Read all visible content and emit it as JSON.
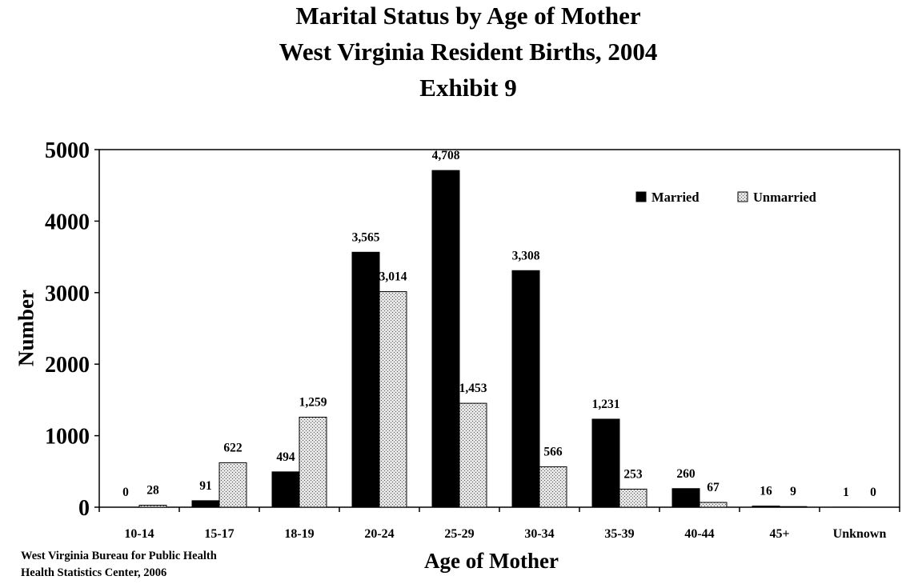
{
  "title_lines": [
    "Marital Status by Age of Mother",
    "West Virginia Resident Births, 2004",
    "Exhibit 9"
  ],
  "source_lines": [
    "West Virginia Bureau for Public Health",
    "Health Statistics Center, 2006"
  ],
  "colors": {
    "married": "#000000",
    "unmarried_fill": "#e4e4e4",
    "unmarried_dots": "#555555"
  },
  "chart_data": {
    "type": "bar",
    "title": "Marital Status by Age of Mother West Virginia Resident Births, 2004 Exhibit 9",
    "xlabel": "Age of Mother",
    "ylabel": "Number",
    "ylim": [
      0,
      5000
    ],
    "yticks": [
      0,
      1000,
      2000,
      3000,
      4000,
      5000
    ],
    "categories": [
      "10-14",
      "15-17",
      "18-19",
      "20-24",
      "25-29",
      "30-34",
      "35-39",
      "40-44",
      "45+",
      "Unknown"
    ],
    "series": [
      {
        "name": "Married",
        "values": [
          0,
          91,
          494,
          3565,
          4708,
          3308,
          1231,
          260,
          16,
          1
        ],
        "labels": [
          "0",
          "91",
          "494",
          "3,565",
          "4,708",
          "3,308",
          "1,231",
          "260",
          "16",
          "1"
        ]
      },
      {
        "name": "Unmarried",
        "values": [
          28,
          622,
          1259,
          3014,
          1453,
          566,
          253,
          67,
          9,
          0
        ],
        "labels": [
          "28",
          "622",
          "1,259",
          "3,014",
          "1,453",
          "566",
          "253",
          "67",
          "9",
          "0"
        ]
      }
    ],
    "legend_position": "top-right",
    "grid": false
  }
}
